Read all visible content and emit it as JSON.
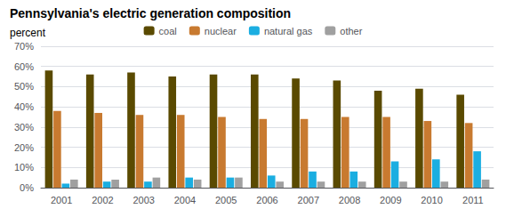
{
  "chart_data": {
    "type": "bar",
    "title": "Pennsylvania's electric generation composition",
    "ylabel": "percent",
    "categories": [
      "2001",
      "2002",
      "2003",
      "2004",
      "2005",
      "2006",
      "2007",
      "2008",
      "2009",
      "2010",
      "2011"
    ],
    "series": [
      {
        "name": "coal",
        "color": "#5a4a00",
        "values": [
          58,
          56,
          57,
          55,
          56,
          56,
          54,
          53,
          48,
          49,
          46
        ]
      },
      {
        "name": "nuclear",
        "color": "#c87a30",
        "values": [
          38,
          37,
          36,
          36,
          35,
          34,
          34,
          35,
          35,
          33,
          32
        ]
      },
      {
        "name": "natural gas",
        "color": "#1baee1",
        "values": [
          2,
          3,
          3,
          5,
          5,
          6,
          8,
          8,
          13,
          14,
          18
        ]
      },
      {
        "name": "other",
        "color": "#a0a0a0",
        "values": [
          4,
          4,
          5,
          4,
          5,
          3,
          3,
          3,
          3,
          3,
          4
        ]
      }
    ],
    "ylim": [
      0,
      70
    ],
    "yticks": [
      {
        "value": 0,
        "label": "0%"
      },
      {
        "value": 10,
        "label": "10%"
      },
      {
        "value": 20,
        "label": "20%"
      },
      {
        "value": 30,
        "label": "30%"
      },
      {
        "value": 40,
        "label": "40%"
      },
      {
        "value": 50,
        "label": "50%"
      },
      {
        "value": 60,
        "label": "60%"
      },
      {
        "value": 70,
        "label": "70%"
      }
    ],
    "grid": true,
    "legend": "top"
  }
}
